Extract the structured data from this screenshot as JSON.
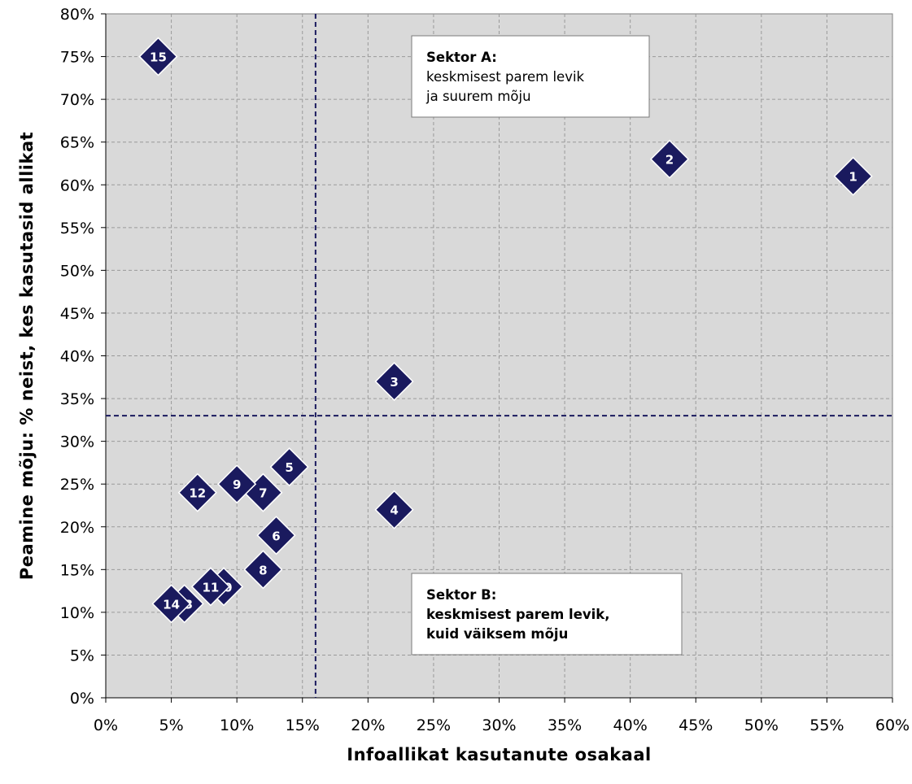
{
  "chart_data": {
    "type": "scatter",
    "xlabel": "Infoallikat kasutanute osakaal",
    "ylabel": "Peamine mõju: % neist, kes kasutasid allikat",
    "xlim": [
      0,
      60
    ],
    "ylim": [
      0,
      80
    ],
    "x_ticks": [
      0,
      5,
      10,
      15,
      20,
      25,
      30,
      35,
      40,
      45,
      50,
      55,
      60
    ],
    "x_tick_labels": [
      "0%",
      "5%",
      "10%",
      "15%",
      "20%",
      "25%",
      "30%",
      "35%",
      "40%",
      "45%",
      "50%",
      "55%",
      "60%"
    ],
    "y_ticks": [
      0,
      5,
      10,
      15,
      20,
      25,
      30,
      35,
      40,
      45,
      50,
      55,
      60,
      65,
      70,
      75,
      80
    ],
    "y_tick_labels": [
      "0%",
      "5%",
      "10%",
      "15%",
      "20%",
      "25%",
      "30%",
      "35%",
      "40%",
      "45%",
      "50%",
      "55%",
      "60%",
      "65%",
      "70%",
      "75%",
      "80%"
    ],
    "grid": true,
    "marker_color": "#1a1a5e",
    "plot_background": "#d9d9d9",
    "points": [
      {
        "label": "1",
        "x": 57,
        "y": 61
      },
      {
        "label": "2",
        "x": 43,
        "y": 63
      },
      {
        "label": "3",
        "x": 22,
        "y": 37
      },
      {
        "label": "4",
        "x": 22,
        "y": 22
      },
      {
        "label": "5",
        "x": 14,
        "y": 27
      },
      {
        "label": "6",
        "x": 13,
        "y": 19
      },
      {
        "label": "7",
        "x": 12,
        "y": 24
      },
      {
        "label": "8",
        "x": 12,
        "y": 15
      },
      {
        "label": "9",
        "x": 10,
        "y": 25
      },
      {
        "label": "10",
        "x": 9,
        "y": 13
      },
      {
        "label": "11",
        "x": 8,
        "y": 13
      },
      {
        "label": "12",
        "x": 7,
        "y": 24
      },
      {
        "label": "13",
        "x": 6,
        "y": 11
      },
      {
        "label": "14",
        "x": 5,
        "y": 11
      },
      {
        "label": "15",
        "x": 4,
        "y": 75
      }
    ],
    "reference_lines": {
      "x": 16,
      "y": 33
    },
    "annotations": [
      {
        "id": "sector-a",
        "lines": [
          "Sektor A:",
          "keskmisest parem levik",
          "ja suurem mõju"
        ],
        "bold_lines": [
          0
        ]
      },
      {
        "id": "sector-b",
        "lines": [
          "Sektor B:",
          "keskmisest parem levik,",
          "kuid väiksem mõju"
        ],
        "bold_lines": [
          0,
          1,
          2
        ]
      }
    ]
  }
}
